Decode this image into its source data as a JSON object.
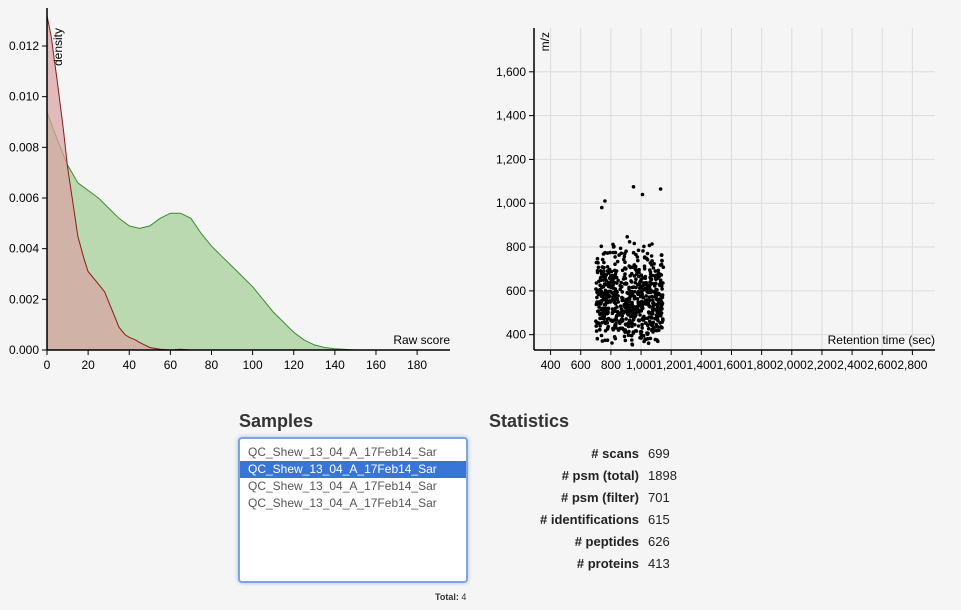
{
  "chart_data": [
    {
      "type": "area",
      "xlabel": "Raw score",
      "ylabel": "density",
      "xlim": [
        0,
        196
      ],
      "ylim": [
        0,
        0.0135
      ],
      "x_ticks": [
        0,
        20,
        40,
        60,
        80,
        100,
        120,
        140,
        160,
        180
      ],
      "y_ticks": [
        0.0,
        0.002,
        0.004,
        0.006,
        0.008,
        0.01,
        0.012
      ],
      "y_tick_labels": [
        "0.000",
        "0.002",
        "0.004",
        "0.006",
        "0.008",
        "0.010",
        "0.012"
      ],
      "grid": false,
      "series": [
        {
          "color": "#3c8c2c",
          "fill": "#b5d6a8",
          "x": [
            0,
            5,
            10,
            15,
            20,
            25,
            30,
            35,
            40,
            45,
            50,
            55,
            60,
            65,
            70,
            75,
            80,
            85,
            90,
            95,
            100,
            105,
            110,
            115,
            120,
            125,
            130,
            135,
            140,
            150,
            160,
            170
          ],
          "y": [
            0.0094,
            0.0083,
            0.0073,
            0.0066,
            0.0063,
            0.006,
            0.0056,
            0.0052,
            0.0049,
            0.0048,
            0.0049,
            0.0052,
            0.0054,
            0.0054,
            0.0052,
            0.0046,
            0.0041,
            0.0037,
            0.0033,
            0.0029,
            0.0025,
            0.002,
            0.0015,
            0.0011,
            0.0007,
            0.0004,
            0.0002,
            0.0001,
            5e-05,
            0.0,
            0.0,
            0.0
          ]
        },
        {
          "color": "#8b1a1a",
          "fill": "#d9a3a3",
          "x": [
            0,
            2,
            5,
            8,
            10,
            13,
            15,
            18,
            20,
            23,
            25,
            28,
            30,
            33,
            35,
            38,
            40,
            43,
            45,
            50,
            55,
            60,
            65,
            70,
            80
          ],
          "y": [
            0.0132,
            0.0124,
            0.0106,
            0.0087,
            0.0072,
            0.0056,
            0.0045,
            0.0036,
            0.0031,
            0.0028,
            0.0026,
            0.0023,
            0.0019,
            0.0013,
            0.0009,
            0.0006,
            0.0005,
            0.0004,
            0.0003,
            0.0001,
            3e-05,
            0.0,
            3e-05,
            0.0,
            0.0
          ]
        }
      ]
    },
    {
      "type": "scatter",
      "xlabel": "Retention time (sec)",
      "ylabel": "m/z",
      "xlim": [
        290,
        2950
      ],
      "ylim": [
        330,
        1800
      ],
      "x_ticks": [
        400,
        600,
        800,
        1000,
        1200,
        1400,
        1600,
        1800,
        2000,
        2200,
        2400,
        2600,
        2800
      ],
      "x_tick_labels": [
        "400",
        "600",
        "800",
        "1,000",
        "1,200",
        "1,400",
        "1,600",
        "1,800",
        "2,000",
        "2,200",
        "2,400",
        "2,600",
        "2,800"
      ],
      "y_ticks": [
        400,
        600,
        800,
        1000,
        1200,
        1400,
        1600
      ],
      "y_tick_labels": [
        "400",
        "600",
        "800",
        "1,000",
        "1,200",
        "1,400",
        "1,600"
      ],
      "grid": true,
      "point_color": "#000000",
      "point_count": 699,
      "x_range": [
        700,
        1150
      ],
      "y_range": [
        340,
        1080
      ],
      "outliers": [
        {
          "x": 950,
          "y": 1075
        },
        {
          "x": 1130,
          "y": 1065
        },
        {
          "x": 1010,
          "y": 1040
        },
        {
          "x": 760,
          "y": 1010
        },
        {
          "x": 740,
          "y": 980
        }
      ]
    }
  ],
  "samples": {
    "title": "Samples",
    "items": [
      {
        "label": "QC_Shew_13_04_A_17Feb14_Sar",
        "selected": false
      },
      {
        "label": "QC_Shew_13_04_A_17Feb14_Sar",
        "selected": true
      },
      {
        "label": "QC_Shew_13_04_A_17Feb14_Sar",
        "selected": false
      },
      {
        "label": "QC_Shew_13_04_A_17Feb14_Sar",
        "selected": false
      }
    ],
    "total_label": "Total:",
    "total_value": "4"
  },
  "statistics": {
    "title": "Statistics",
    "rows": [
      {
        "label": "# scans",
        "value": "699"
      },
      {
        "label": "# psm (total)",
        "value": "1898"
      },
      {
        "label": "# psm (filter)",
        "value": "701"
      },
      {
        "label": "# identifications",
        "value": "615"
      },
      {
        "label": "# peptides",
        "value": "626"
      },
      {
        "label": "# proteins",
        "value": "413"
      }
    ]
  }
}
